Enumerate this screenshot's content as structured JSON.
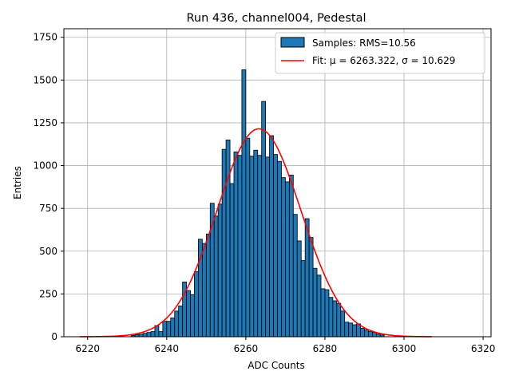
{
  "chart_data": {
    "type": "bar",
    "title": "Run 436, channel004, Pedestal",
    "xlabel": "ADC Counts",
    "ylabel": "Entries",
    "xlim": [
      6214,
      6322
    ],
    "ylim": [
      0,
      1800
    ],
    "xticks": [
      6220,
      6240,
      6260,
      6280,
      6300,
      6320
    ],
    "yticks": [
      0,
      250,
      500,
      750,
      1000,
      1250,
      1500,
      1750
    ],
    "grid": true,
    "legend_position": "top-right",
    "colors": {
      "bars": "#1f77b4",
      "bar_edge": "#000000",
      "fit": "#ff0000",
      "grid": "#b0b0b0"
    },
    "histogram": {
      "name": "Samples: RMS=10.56",
      "bin_width": 1,
      "bins": [
        {
          "x": 6231,
          "y": 8
        },
        {
          "x": 6232,
          "y": 12
        },
        {
          "x": 6233,
          "y": 15
        },
        {
          "x": 6234,
          "y": 20
        },
        {
          "x": 6235,
          "y": 25
        },
        {
          "x": 6236,
          "y": 30
        },
        {
          "x": 6237,
          "y": 65
        },
        {
          "x": 6238,
          "y": 30
        },
        {
          "x": 6239,
          "y": 90
        },
        {
          "x": 6240,
          "y": 90
        },
        {
          "x": 6241,
          "y": 110
        },
        {
          "x": 6242,
          "y": 150
        },
        {
          "x": 6243,
          "y": 180
        },
        {
          "x": 6244,
          "y": 320
        },
        {
          "x": 6245,
          "y": 270
        },
        {
          "x": 6246,
          "y": 245
        },
        {
          "x": 6247,
          "y": 380
        },
        {
          "x": 6248,
          "y": 570
        },
        {
          "x": 6249,
          "y": 545
        },
        {
          "x": 6250,
          "y": 600
        },
        {
          "x": 6251,
          "y": 780
        },
        {
          "x": 6252,
          "y": 705
        },
        {
          "x": 6253,
          "y": 775
        },
        {
          "x": 6254,
          "y": 1095
        },
        {
          "x": 6255,
          "y": 1150
        },
        {
          "x": 6256,
          "y": 895
        },
        {
          "x": 6257,
          "y": 1080
        },
        {
          "x": 6258,
          "y": 1060
        },
        {
          "x": 6259,
          "y": 1560
        },
        {
          "x": 6260,
          "y": 1160
        },
        {
          "x": 6261,
          "y": 1055
        },
        {
          "x": 6262,
          "y": 1090
        },
        {
          "x": 6263,
          "y": 1060
        },
        {
          "x": 6264,
          "y": 1375
        },
        {
          "x": 6265,
          "y": 1050
        },
        {
          "x": 6266,
          "y": 1175
        },
        {
          "x": 6267,
          "y": 1065
        },
        {
          "x": 6268,
          "y": 1025
        },
        {
          "x": 6269,
          "y": 930
        },
        {
          "x": 6270,
          "y": 905
        },
        {
          "x": 6271,
          "y": 945
        },
        {
          "x": 6272,
          "y": 715
        },
        {
          "x": 6273,
          "y": 560
        },
        {
          "x": 6274,
          "y": 445
        },
        {
          "x": 6275,
          "y": 690
        },
        {
          "x": 6276,
          "y": 580
        },
        {
          "x": 6277,
          "y": 400
        },
        {
          "x": 6278,
          "y": 360
        },
        {
          "x": 6279,
          "y": 280
        },
        {
          "x": 6280,
          "y": 275
        },
        {
          "x": 6281,
          "y": 230
        },
        {
          "x": 6282,
          "y": 210
        },
        {
          "x": 6283,
          "y": 195
        },
        {
          "x": 6284,
          "y": 150
        },
        {
          "x": 6285,
          "y": 85
        },
        {
          "x": 6286,
          "y": 80
        },
        {
          "x": 6287,
          "y": 70
        },
        {
          "x": 6288,
          "y": 75
        },
        {
          "x": 6289,
          "y": 50
        },
        {
          "x": 6290,
          "y": 40
        },
        {
          "x": 6291,
          "y": 30
        },
        {
          "x": 6292,
          "y": 25
        },
        {
          "x": 6293,
          "y": 15
        },
        {
          "x": 6294,
          "y": 10
        }
      ]
    },
    "fit": {
      "name": "Fit: μ = 6263.322, σ = 10.629",
      "type": "gaussian",
      "mu": 6263.322,
      "sigma": 10.629,
      "amplitude": 1215,
      "x_range": [
        6218,
        6307
      ]
    }
  }
}
